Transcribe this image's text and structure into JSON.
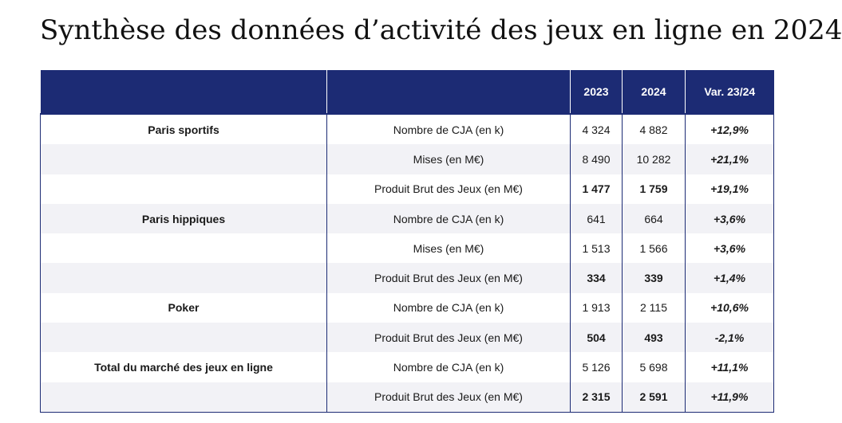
{
  "title": "Synthèse des données d’activité des jeux en ligne en 2024",
  "table": {
    "headers": [
      "",
      "",
      "2023",
      "2024",
      "Var. 23/24"
    ],
    "rows": [
      {
        "category": "Paris sportifs",
        "metric": "Nombre de CJA (en k)",
        "v2023": "4 324",
        "v2024": "4 882",
        "var": "+12,9%"
      },
      {
        "category": "",
        "metric": "Mises (en M€)",
        "v2023": "8 490",
        "v2024": "10 282",
        "var": "+21,1%"
      },
      {
        "category": "",
        "metric": "Produit Brut des Jeux (en M€)",
        "v2023": "1 477",
        "v2024": "1 759",
        "var": "+19,1%"
      },
      {
        "category": "Paris hippiques",
        "metric": "Nombre de CJA (en k)",
        "v2023": "641",
        "v2024": "664",
        "var": "+3,6%"
      },
      {
        "category": "",
        "metric": "Mises (en M€)",
        "v2023": "1 513",
        "v2024": "1 566",
        "var": "+3,6%"
      },
      {
        "category": "",
        "metric": "Produit Brut des Jeux (en M€)",
        "v2023": "334",
        "v2024": "339",
        "var": "+1,4%"
      },
      {
        "category": "Poker",
        "metric": "Nombre de CJA (en k)",
        "v2023": "1 913",
        "v2024": "2 115",
        "var": "+10,6%"
      },
      {
        "category": "",
        "metric": "Produit Brut des Jeux (en M€)",
        "v2023": "504",
        "v2024": "493",
        "var": "-2,1%"
      },
      {
        "category": "Total du marché des jeux en ligne",
        "metric": "Nombre de CJA (en k)",
        "v2023": "5 126",
        "v2024": "5 698",
        "var": "+11,1%"
      },
      {
        "category": "",
        "metric": "Produit Brut des Jeux (en M€)",
        "v2023": "2 315",
        "v2024": "2 591",
        "var": "+11,9%"
      }
    ]
  }
}
